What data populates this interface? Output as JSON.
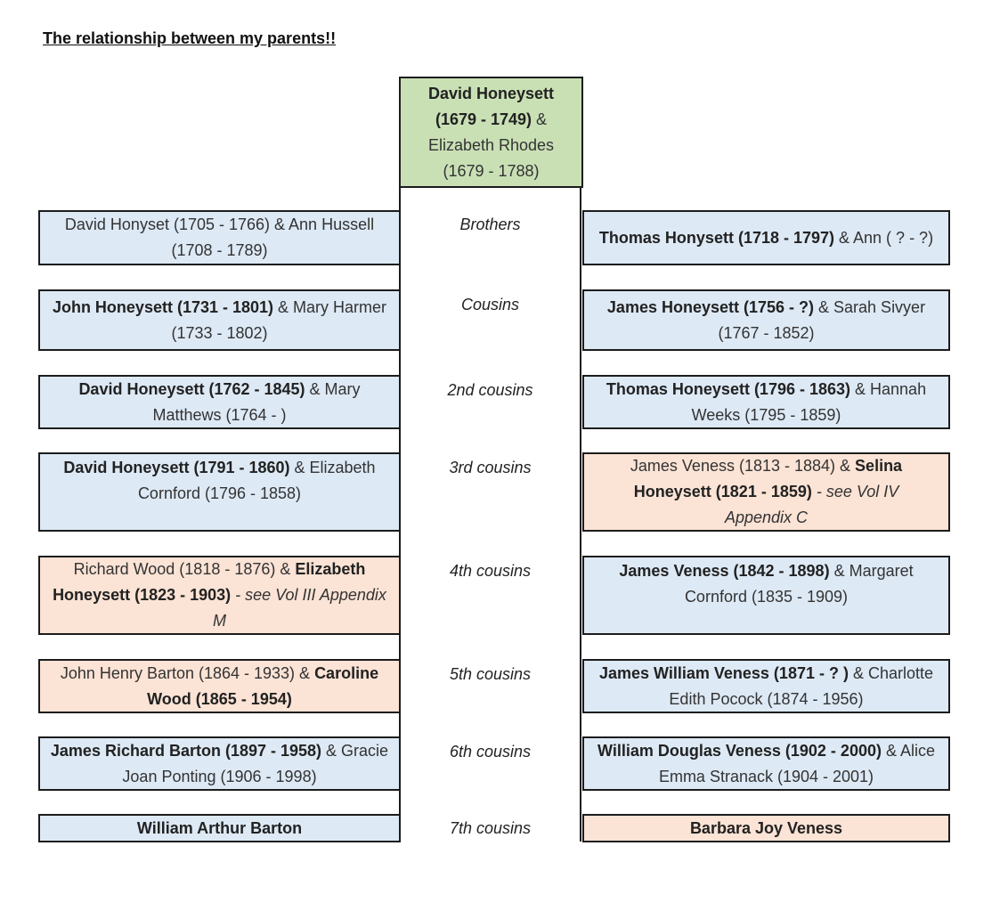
{
  "title": "The relationship between my parents!!",
  "colors": {
    "blue": "#dde9f5",
    "peach": "#fbe3d5",
    "green": "#c9e0b5"
  },
  "root": {
    "bold": "David Honeysett (1679 - 1749)",
    "amp": " & ",
    "plain": "Elizabeth Rhodes (1679 - 1788)"
  },
  "rows": [
    {
      "relation": "Brothers",
      "left": {
        "plain1": "David Honyset (1705 - 1766) & Ann Hussell (1708 - 1789)"
      },
      "right": {
        "bold": "Thomas Honysett (1718 - 1797)",
        "plain": " & Ann ( ? - ?)"
      }
    },
    {
      "relation": "Cousins",
      "left": {
        "bold": "John Honeysett (1731 - 1801)",
        "plain": " & Mary Harmer (1733 - 1802)"
      },
      "right": {
        "bold": "James Honeysett (1756 - ?)",
        "plain": " & Sarah Sivyer (1767 - 1852)"
      }
    },
    {
      "relation": "2nd cousins",
      "left": {
        "bold": "David Honeysett (1762 - 1845)",
        "plain": " & Mary Matthews (1764 - )"
      },
      "right": {
        "bold": "Thomas Honeysett (1796  - 1863)",
        "plain": " & Hannah Weeks (1795 - 1859)"
      }
    },
    {
      "relation": "3rd cousins",
      "left": {
        "bold": "David Honeysett (1791 - 1860)",
        "plain": " & Elizabeth Cornford (1796 - 1858)"
      },
      "right": {
        "plain1": "James Veness (1813 - 1884) & ",
        "bold": "Selina Honeysett (1821 - 1859)",
        "italic": "  - see  Vol IV Appendix C"
      }
    },
    {
      "relation": "4th cousins",
      "left": {
        "plain1": "Richard Wood  (1818 - 1876) & ",
        "bold": "Elizabeth Honeysett (1823 - 1903)",
        "italic": " - see Vol III Appendix M"
      },
      "right": {
        "bold": "James Veness (1842 - 1898)",
        "plain": " & Margaret Cornford  (1835 - 1909)"
      }
    },
    {
      "relation": "5th cousins",
      "left": {
        "plain1": "John Henry Barton (1864 - 1933) & ",
        "bold": "Caroline Wood (1865 - 1954)"
      },
      "right": {
        "bold": "James William Veness (1871 - ? )",
        "plain": " & Charlotte Edith Pocock (1874 - 1956)"
      }
    },
    {
      "relation": "6th cousins",
      "left": {
        "bold": "James Richard Barton (1897 - 1958)",
        "plain": "  & Gracie Joan Ponting (1906 - 1998)"
      },
      "right": {
        "bold": "William Douglas Veness (1902 - 2000)",
        "plain": " & Alice Emma Stranack (1904 - 2001)"
      }
    },
    {
      "relation": "7th cousins",
      "left": {
        "bold": "William Arthur Barton"
      },
      "right": {
        "bold": "Barbara Joy Veness"
      }
    }
  ]
}
